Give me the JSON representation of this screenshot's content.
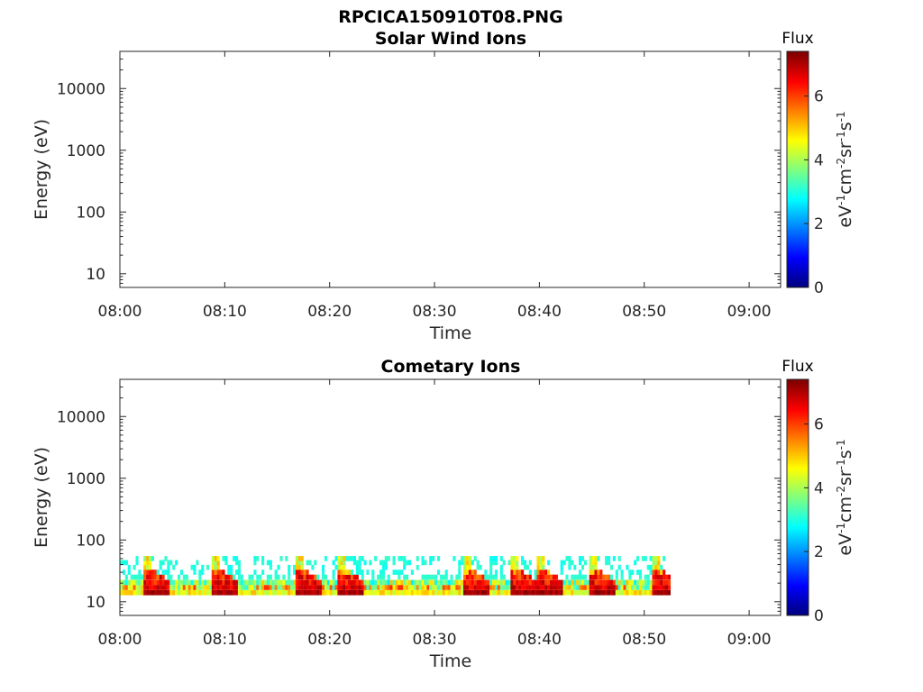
{
  "figure_title": "RPCICA150910T08.PNG",
  "chart_data": [
    {
      "type": "heatmap",
      "title": "Solar Wind Ions",
      "xlabel": "Time",
      "ylabel": "Energy (eV)",
      "x_ticks": [
        "08:00",
        "08:10",
        "08:20",
        "08:30",
        "08:40",
        "08:50",
        "09:00"
      ],
      "y_ticks": [
        "10",
        "100",
        "1000",
        "10000"
      ],
      "xlim": [
        "08:00",
        "09:03"
      ],
      "ylim": [
        6,
        40000
      ],
      "y_scale": "log",
      "colorbar": {
        "title": "Flux",
        "label": "eV-1cm-2sr-1s-1",
        "ticks": [
          "0",
          "2",
          "4",
          "6"
        ],
        "range": [
          0,
          7.4
        ],
        "colormap": "jet"
      },
      "data": []
    },
    {
      "type": "heatmap",
      "title": "Cometary Ions",
      "xlabel": "Time",
      "ylabel": "Energy (eV)",
      "x_ticks": [
        "08:00",
        "08:10",
        "08:20",
        "08:30",
        "08:40",
        "08:50",
        "09:00"
      ],
      "y_ticks": [
        "10",
        "100",
        "1000",
        "10000"
      ],
      "xlim": [
        "08:00",
        "09:03"
      ],
      "ylim": [
        6,
        40000
      ],
      "y_scale": "log",
      "colorbar": {
        "title": "Flux",
        "label": "eV-1cm-2sr-1s-1",
        "ticks": [
          "0",
          "2",
          "4",
          "6"
        ],
        "range": [
          0,
          7.4
        ],
        "colormap": "jet"
      },
      "data_time_range": [
        "08:00",
        "08:52.5"
      ],
      "bursts": [
        {
          "t": "08:02.5",
          "peak_energy": 50
        },
        {
          "t": "08:09",
          "peak_energy": 50
        },
        {
          "t": "08:17",
          "peak_energy": 40
        },
        {
          "t": "08:21",
          "peak_energy": 50
        },
        {
          "t": "08:33",
          "peak_energy": 50
        },
        {
          "t": "08:37.5",
          "peak_energy": 45
        },
        {
          "t": "08:40",
          "peak_energy": 50
        },
        {
          "t": "08:45",
          "peak_energy": 50
        },
        {
          "t": "08:51",
          "peak_energy": 50
        }
      ]
    }
  ]
}
